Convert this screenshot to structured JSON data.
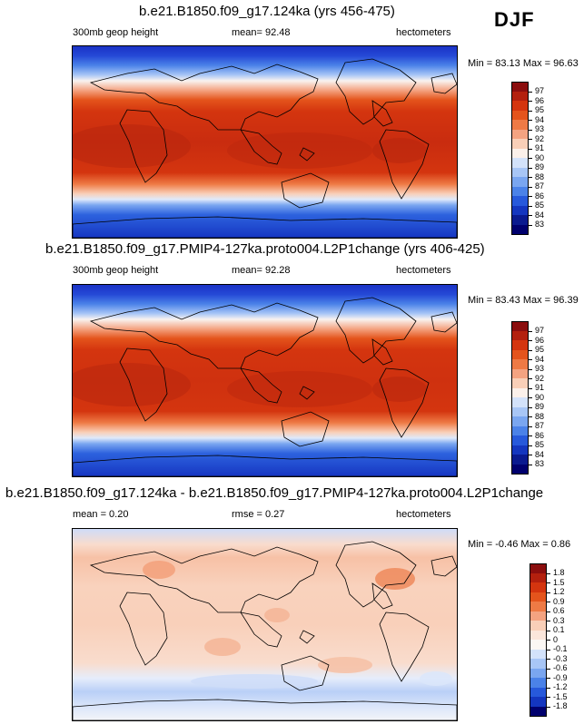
{
  "season": "DJF",
  "panels": [
    {
      "title": "b.e21.B1850.f09_g17.124ka (yrs 456-475)",
      "field_label": "300mb geop height",
      "stat_text": "mean=  92.48",
      "units": "hectometers",
      "minmax": "Min =  83.13 Max =  96.63",
      "colorbar": {
        "levels": [
          "97",
          "96",
          "95",
          "94",
          "93",
          "92",
          "91",
          "90",
          "89",
          "88",
          "87",
          "86",
          "85",
          "84",
          "83"
        ],
        "colors": [
          "#8b0e0e",
          "#b3200e",
          "#d4350f",
          "#e4541c",
          "#ee7a45",
          "#f4a381",
          "#f9cfb8",
          "#fbf0ea",
          "#d3e2fa",
          "#a8c6f6",
          "#7aa6f0",
          "#4b82e8",
          "#2759db",
          "#1436bf",
          "#0a1a8f",
          "#00006e"
        ]
      },
      "map": {
        "style": "absolute",
        "bands": [
          {
            "stop": 0.0,
            "color": "#1a33c6"
          },
          {
            "stop": 0.05,
            "color": "#2549d6"
          },
          {
            "stop": 0.1,
            "color": "#4b82e8"
          },
          {
            "stop": 0.15,
            "color": "#a8c6f6"
          },
          {
            "stop": 0.18,
            "color": "#f9f3f0"
          },
          {
            "stop": 0.23,
            "color": "#f4a381"
          },
          {
            "stop": 0.28,
            "color": "#e4541c"
          },
          {
            "stop": 0.34,
            "color": "#d4350f"
          },
          {
            "stop": 0.5,
            "color": "#c92c0f"
          },
          {
            "stop": 0.66,
            "color": "#d4350f"
          },
          {
            "stop": 0.72,
            "color": "#ee7a45"
          },
          {
            "stop": 0.77,
            "color": "#f9cfb8"
          },
          {
            "stop": 0.8,
            "color": "#dfe9fb"
          },
          {
            "stop": 0.83,
            "color": "#7aa6f0"
          },
          {
            "stop": 0.88,
            "color": "#2d62de"
          },
          {
            "stop": 1.0,
            "color": "#1636c2"
          }
        ]
      }
    },
    {
      "title": "b.e21.B1850.f09_g17.PMIP4-127ka.proto004.L2P1change (yrs 406-425)",
      "field_label": "300mb geop height",
      "stat_text": "mean=  92.28",
      "units": "hectometers",
      "minmax": "Min =  83.43 Max =  96.39",
      "colorbar": {
        "levels": [
          "97",
          "96",
          "95",
          "94",
          "93",
          "92",
          "91",
          "90",
          "89",
          "88",
          "87",
          "86",
          "85",
          "84",
          "83"
        ],
        "colors": [
          "#8b0e0e",
          "#b3200e",
          "#d4350f",
          "#e4541c",
          "#ee7a45",
          "#f4a381",
          "#f9cfb8",
          "#fbf0ea",
          "#d3e2fa",
          "#a8c6f6",
          "#7aa6f0",
          "#4b82e8",
          "#2759db",
          "#1436bf",
          "#0a1a8f",
          "#00006e"
        ]
      },
      "map": {
        "style": "absolute",
        "bands": [
          {
            "stop": 0.0,
            "color": "#1a33c6"
          },
          {
            "stop": 0.05,
            "color": "#2549d6"
          },
          {
            "stop": 0.1,
            "color": "#4b82e8"
          },
          {
            "stop": 0.15,
            "color": "#a8c6f6"
          },
          {
            "stop": 0.18,
            "color": "#f9f3f0"
          },
          {
            "stop": 0.23,
            "color": "#f4a381"
          },
          {
            "stop": 0.28,
            "color": "#e4541c"
          },
          {
            "stop": 0.34,
            "color": "#d4350f"
          },
          {
            "stop": 0.5,
            "color": "#cf310f"
          },
          {
            "stop": 0.66,
            "color": "#d4350f"
          },
          {
            "stop": 0.72,
            "color": "#ee7a45"
          },
          {
            "stop": 0.77,
            "color": "#f9cfb8"
          },
          {
            "stop": 0.8,
            "color": "#dfe9fb"
          },
          {
            "stop": 0.83,
            "color": "#7aa6f0"
          },
          {
            "stop": 0.88,
            "color": "#2d62de"
          },
          {
            "stop": 1.0,
            "color": "#1636c2"
          }
        ]
      }
    },
    {
      "title": "b.e21.B1850.f09_g17.124ka - b.e21.B1850.f09_g17.PMIP4-127ka.proto004.L2P1change",
      "field_label": "mean =  0.20",
      "stat_text": "rmse =  0.27",
      "units": "hectometers",
      "minmax": "Min =  -0.46 Max =  0.86",
      "colorbar": {
        "levels": [
          "1.8",
          "1.5",
          "1.2",
          "0.9",
          "0.6",
          "0.3",
          "0.1",
          "0",
          "-0.1",
          "-0.3",
          "-0.6",
          "-0.9",
          "-1.2",
          "-1.5",
          "-1.8"
        ],
        "colors": [
          "#8b0e0e",
          "#b3200e",
          "#d4350f",
          "#e4541c",
          "#ee7a45",
          "#f4a381",
          "#f9cfb8",
          "#fbe6db",
          "#fbf7f4",
          "#d3e2fa",
          "#a8c6f6",
          "#7aa6f0",
          "#4b82e8",
          "#2759db",
          "#1436bf",
          "#00006e"
        ]
      },
      "map": {
        "style": "difference",
        "bands": [
          {
            "stop": 0.0,
            "color": "#cfdcf8"
          },
          {
            "stop": 0.08,
            "color": "#f9dccd"
          },
          {
            "stop": 0.15,
            "color": "#f7c1a6"
          },
          {
            "stop": 0.3,
            "color": "#f9d2bd"
          },
          {
            "stop": 0.5,
            "color": "#f9d0ba"
          },
          {
            "stop": 0.7,
            "color": "#f9dccd"
          },
          {
            "stop": 0.78,
            "color": "#e6edfb"
          },
          {
            "stop": 0.85,
            "color": "#b9cff7"
          },
          {
            "stop": 0.93,
            "color": "#dbe6fa"
          },
          {
            "stop": 1.0,
            "color": "#f3f4f8"
          }
        ]
      }
    }
  ]
}
